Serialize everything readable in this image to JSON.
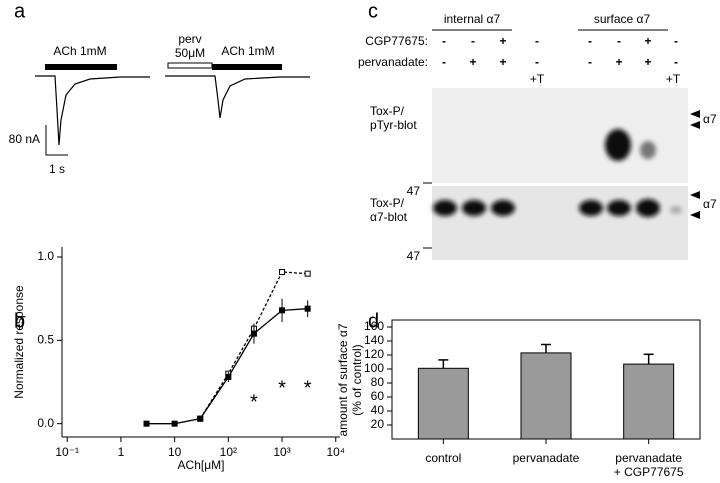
{
  "panel_labels": [
    "a",
    "b",
    "c",
    "d"
  ],
  "panel_a": {
    "ach_label_1": "ACh 1mM",
    "perv_label": "perv",
    "perv_conc": "50μM",
    "ach_label_2": "ACh 1mM",
    "scale_current": "80 nA",
    "scale_time": "1 s"
  },
  "panel_c": {
    "groups": [
      "internal α7",
      "surface α7"
    ],
    "row_labels": [
      "CGP77675:",
      "pervanadate:"
    ],
    "cgp": [
      "-",
      "-",
      "+",
      "-",
      "-",
      "-",
      "+",
      "-"
    ],
    "perv": [
      "-",
      "+",
      "+",
      "-",
      "-",
      "+",
      "+",
      "-"
    ],
    "toxin": [
      "+T",
      "+T"
    ],
    "blot_labels": [
      "Tox-P/\npTyr-blot",
      "Tox-P/\nα7-blot"
    ],
    "marker": "47",
    "band": "α7"
  },
  "chart_data": [
    {
      "type": "line",
      "xlabel": "ACh[μM]",
      "ylabel": "Normalized response",
      "log_x": true,
      "x": [
        3,
        10,
        30,
        100,
        300,
        1000,
        3000
      ],
      "series": [
        {
          "style": "dashed",
          "marker": "open",
          "color": "#000000",
          "values": [
            null,
            null,
            0.03,
            0.3,
            0.57,
            0.91,
            0.9
          ]
        },
        {
          "style": "solid",
          "marker": "filled",
          "color": "#000000",
          "values": [
            0,
            0,
            0.03,
            0.28,
            0.54,
            0.68,
            0.69
          ],
          "errors": [
            0,
            0,
            0.01,
            0.03,
            0.06,
            0.07,
            0.05
          ]
        }
      ],
      "annotations": [
        {
          "text": "*",
          "x": 300
        },
        {
          "text": "*",
          "x": 1000
        },
        {
          "text": "*",
          "x": 3000
        }
      ],
      "xlim": [
        0.08,
        12000
      ],
      "xticks": [
        {
          "value": 0.1,
          "label": "10⁻¹"
        },
        1,
        10,
        {
          "value": 100,
          "label": "10²"
        },
        {
          "value": 1000,
          "label": "10³"
        },
        {
          "value": 10000,
          "label": "10⁴"
        }
      ],
      "ylim": [
        -0.08,
        1.06
      ],
      "yticks": [
        {
          "value": 0,
          "label": "0.0"
        },
        0.5,
        {
          "value": 1,
          "label": "1.0"
        }
      ]
    },
    {
      "type": "bar",
      "ylabel": "amount of surface α7\n(% of control)",
      "categories": [
        "control",
        "pervanadate",
        "pervanadate\n+ CGP77675"
      ],
      "values": [
        101,
        123,
        107
      ],
      "errors": [
        12,
        12,
        14
      ],
      "color": "#9a9a9a",
      "ylim": [
        0,
        170
      ],
      "yticks": [
        20,
        40,
        60,
        80,
        100,
        120,
        140,
        160
      ]
    }
  ]
}
